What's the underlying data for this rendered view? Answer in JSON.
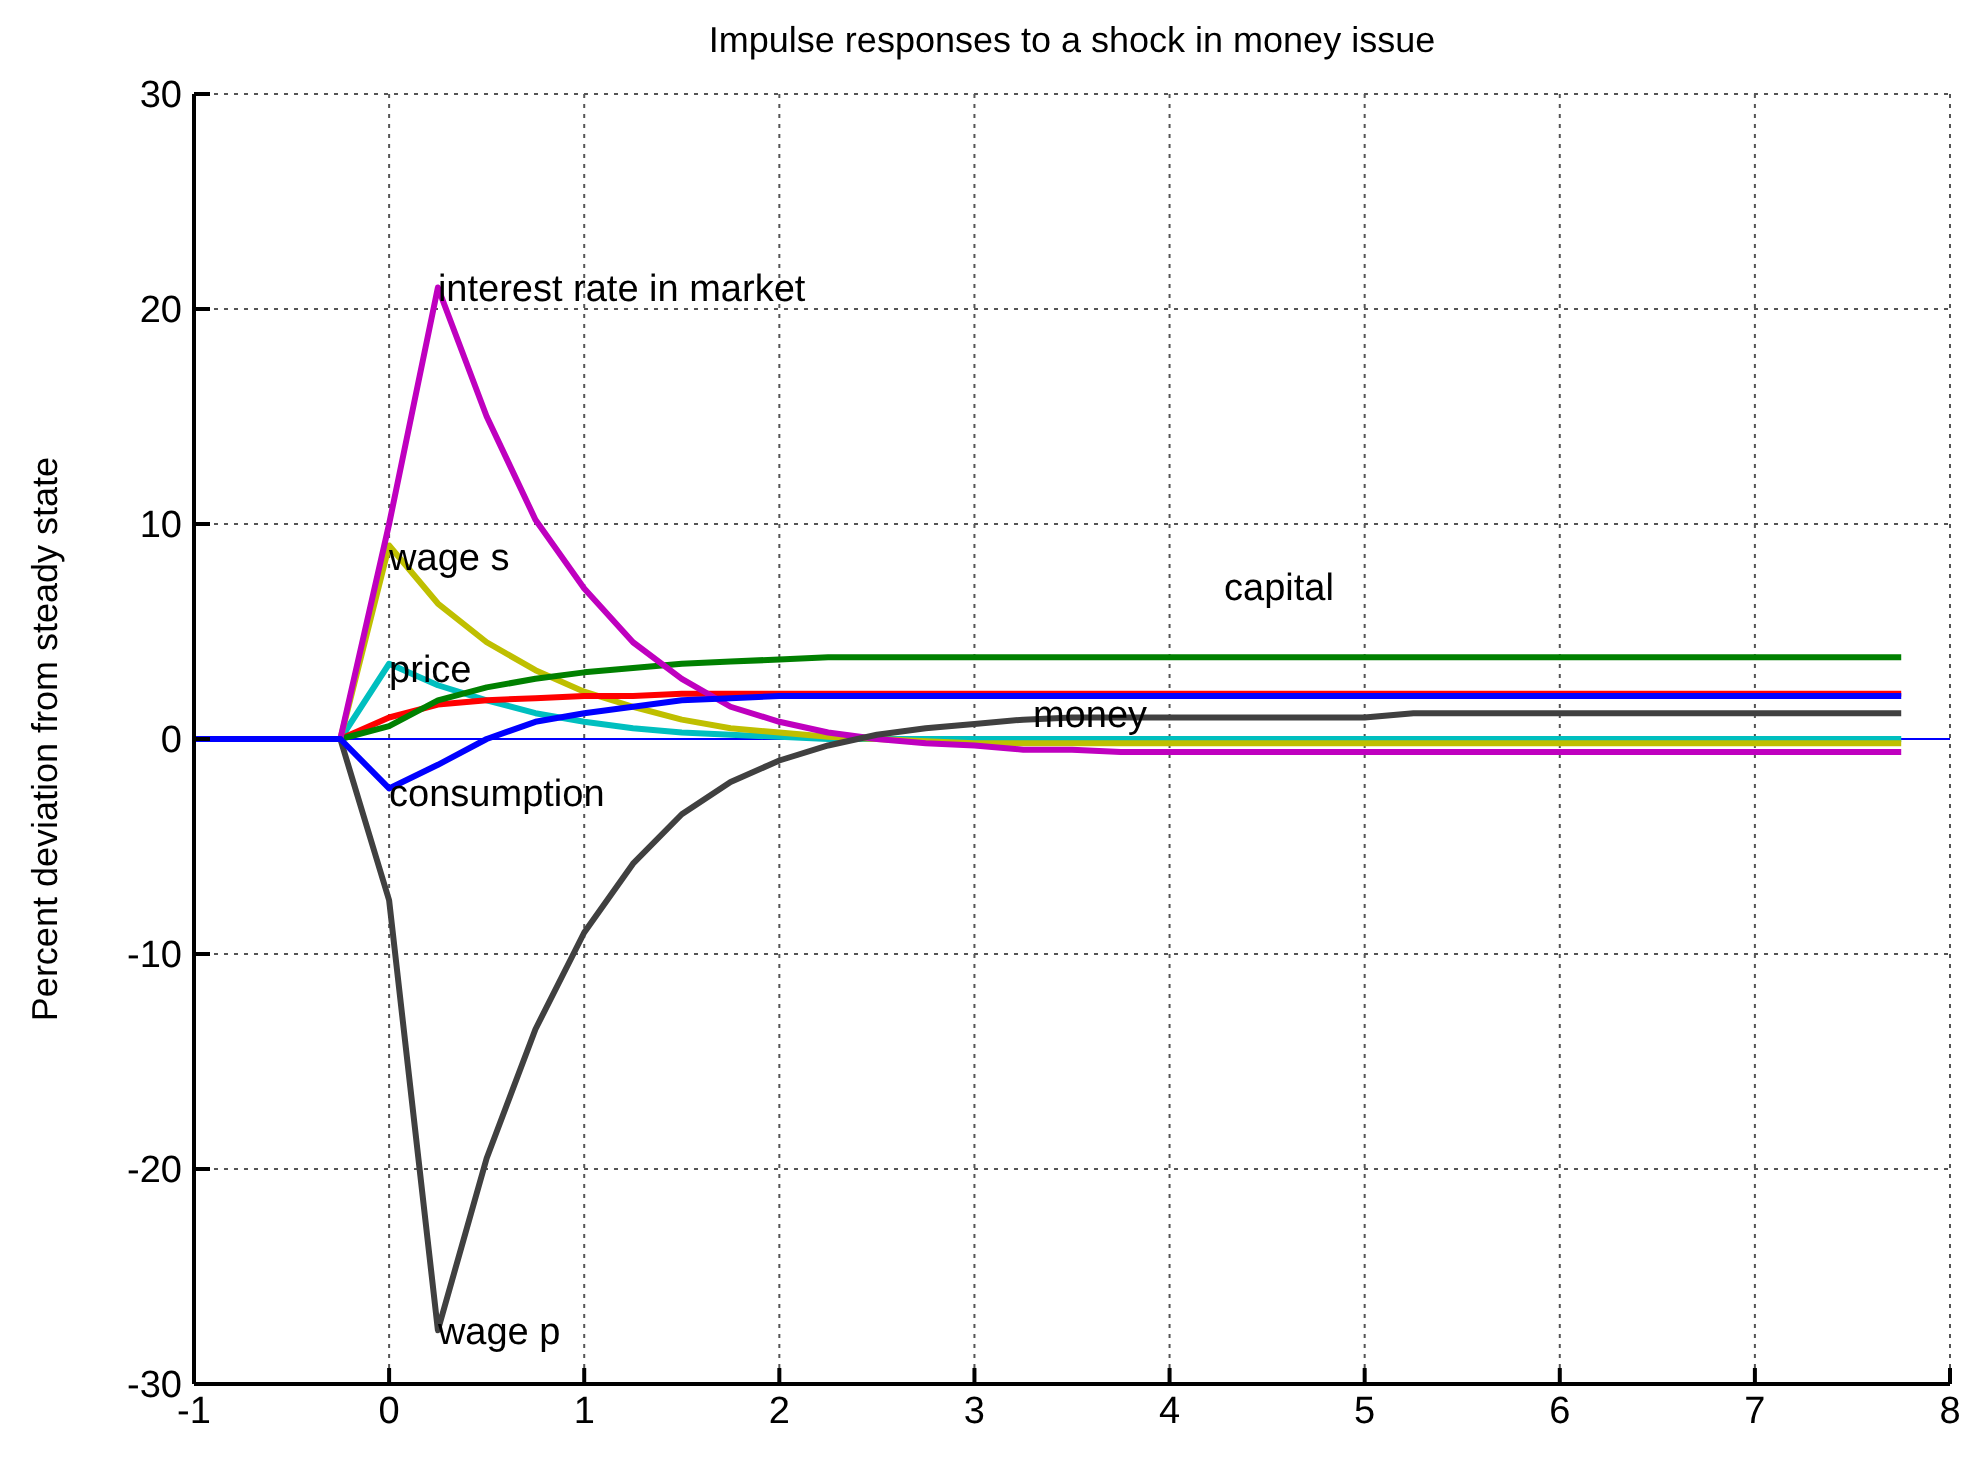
{
  "chart_data": {
    "type": "line",
    "title": "Impulse responses to a shock in money issue",
    "ylabel": "Percent deviation from steady state",
    "x": [
      -1,
      -0.75,
      -0.5,
      -0.25,
      0,
      0.25,
      0.5,
      0.75,
      1,
      1.25,
      1.5,
      1.75,
      2,
      2.25,
      2.5,
      2.75,
      3,
      3.25,
      3.5,
      3.75,
      4,
      4.25,
      4.5,
      4.75,
      5,
      5.25,
      5.5,
      5.75,
      6,
      6.25,
      6.5,
      6.75,
      7,
      7.25,
      7.5,
      7.75
    ],
    "series": [
      {
        "color": "#00bfbf",
        "values": [
          null,
          null,
          null,
          0,
          3.5,
          2.5,
          1.8,
          1.2,
          0.8,
          0.5,
          0.3,
          0.2,
          0.1,
          0,
          0,
          0,
          0,
          0,
          0,
          0,
          0,
          0,
          0,
          0,
          0,
          0,
          0,
          0,
          0,
          0,
          0,
          0,
          0,
          0,
          0,
          0
        ]
      },
      {
        "color": "#bfbf00",
        "values": [
          null,
          null,
          null,
          0,
          9,
          6.3,
          4.5,
          3.2,
          2.2,
          1.5,
          0.9,
          0.5,
          0.3,
          0.1,
          0,
          -0.1,
          -0.2,
          -0.2,
          -0.2,
          -0.2,
          -0.2,
          -0.2,
          -0.2,
          -0.2,
          -0.2,
          -0.2,
          -0.2,
          -0.2,
          -0.2,
          -0.2,
          -0.2,
          -0.2,
          -0.2,
          -0.2,
          -0.2,
          -0.2
        ]
      },
      {
        "color": "#ff0000",
        "values": [
          null,
          null,
          null,
          0,
          1,
          1.6,
          1.8,
          1.9,
          2,
          2,
          2.1,
          2.1,
          2.1,
          2.1,
          2.1,
          2.1,
          2.1,
          2.1,
          2.1,
          2.1,
          2.1,
          2.1,
          2.1,
          2.1,
          2.1,
          2.1,
          2.1,
          2.1,
          2.1,
          2.1,
          2.1,
          2.1,
          2.1,
          2.1,
          2.1,
          2.1
        ]
      },
      {
        "color": "#008000",
        "values": [
          null,
          null,
          null,
          0,
          0.6,
          1.8,
          2.4,
          2.8,
          3.1,
          3.3,
          3.5,
          3.6,
          3.7,
          3.8,
          3.8,
          3.8,
          3.8,
          3.8,
          3.8,
          3.8,
          3.8,
          3.8,
          3.8,
          3.8,
          3.8,
          3.8,
          3.8,
          3.8,
          3.8,
          3.8,
          3.8,
          3.8,
          3.8,
          3.8,
          3.8,
          3.8
        ]
      },
      {
        "color": "#bf00bf",
        "values": [
          null,
          null,
          null,
          0,
          10,
          21,
          15,
          10.2,
          7,
          4.5,
          2.8,
          1.5,
          0.8,
          0.3,
          0,
          -0.2,
          -0.3,
          -0.5,
          -0.5,
          -0.6,
          -0.6,
          -0.6,
          -0.6,
          -0.6,
          -0.6,
          -0.6,
          -0.6,
          -0.6,
          -0.6,
          -0.6,
          -0.6,
          -0.6,
          -0.6,
          -0.6,
          -0.6,
          -0.6
        ]
      },
      {
        "color": "#404040",
        "values": [
          0,
          0,
          0,
          0,
          -7.5,
          -27.5,
          -19.5,
          -13.5,
          -9,
          -5.8,
          -3.5,
          -2,
          -1,
          -0.3,
          0.2,
          0.5,
          0.7,
          0.9,
          1,
          1,
          1,
          1,
          1,
          1,
          1,
          1.2,
          1.2,
          1.2,
          1.2,
          1.2,
          1.2,
          1.2,
          1.2,
          1.2,
          1.2,
          1.2
        ]
      },
      {
        "color": "#0000ff",
        "values": [
          0,
          0,
          0,
          0,
          -2.3,
          -1.2,
          0,
          0.8,
          1.2,
          1.5,
          1.8,
          1.9,
          2,
          2,
          2,
          2,
          2,
          2,
          2,
          2,
          2,
          2,
          2,
          2,
          2,
          2,
          2,
          2,
          2,
          2,
          2,
          2,
          2,
          2,
          2,
          2
        ]
      }
    ],
    "xlim": [
      -1,
      8
    ],
    "xticks": [
      -1,
      0,
      1,
      2,
      3,
      4,
      5,
      6,
      7,
      8
    ],
    "ylim": [
      -30,
      30
    ],
    "yticks": [
      -30,
      -20,
      -10,
      0,
      10,
      20,
      30
    ],
    "grid": true,
    "line_style": "solid",
    "marker": "none",
    "legend": false,
    "ref_lines": [
      {
        "axis": "y",
        "value": 0,
        "color": "#0000ff",
        "line_style": "solid"
      }
    ],
    "annotations": [
      {
        "text": "interest rate in market",
        "x": 0.25,
        "y": 21
      },
      {
        "text": "wage s",
        "x": 0,
        "y": 8.5
      },
      {
        "text": "price",
        "x": 0,
        "y": 3.3
      },
      {
        "text": "consumption",
        "x": 0,
        "y": -2.5
      },
      {
        "text": "wage p",
        "x": 0.25,
        "y": -27.5
      },
      "capital",
      {
        "text": "money",
        "x": 3.3,
        "y": 1.2
      }
    ]
  }
}
